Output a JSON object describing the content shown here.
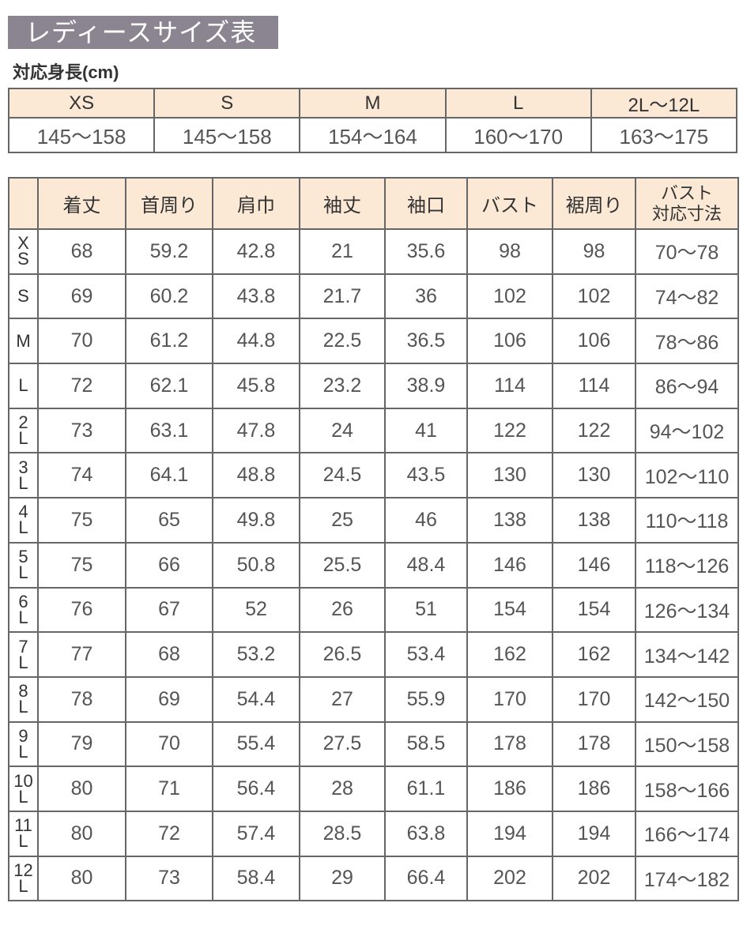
{
  "title": "レディースサイズ表",
  "height_table": {
    "caption": "対応身長(cm)",
    "sizes": [
      "XS",
      "S",
      "M",
      "L",
      "2L〜12L"
    ],
    "heights": [
      "145〜158",
      "145〜158",
      "154〜164",
      "160〜170",
      "163〜175"
    ]
  },
  "measure_table": {
    "headers": [
      "",
      "着丈",
      "首周り",
      "肩巾",
      "袖丈",
      "袖口",
      "バスト",
      "裾周り",
      "バスト\n対応寸法"
    ],
    "rows": [
      [
        "X\nS",
        "68",
        "59.2",
        "42.8",
        "21",
        "35.6",
        "98",
        "98",
        "70〜78"
      ],
      [
        "S",
        "69",
        "60.2",
        "43.8",
        "21.7",
        "36",
        "102",
        "102",
        "74〜82"
      ],
      [
        "M",
        "70",
        "61.2",
        "44.8",
        "22.5",
        "36.5",
        "106",
        "106",
        "78〜86"
      ],
      [
        "L",
        "72",
        "62.1",
        "45.8",
        "23.2",
        "38.9",
        "114",
        "114",
        "86〜94"
      ],
      [
        "2\nL",
        "73",
        "63.1",
        "47.8",
        "24",
        "41",
        "122",
        "122",
        "94〜102"
      ],
      [
        "3\nL",
        "74",
        "64.1",
        "48.8",
        "24.5",
        "43.5",
        "130",
        "130",
        "102〜110"
      ],
      [
        "4\nL",
        "75",
        "65",
        "49.8",
        "25",
        "46",
        "138",
        "138",
        "110〜118"
      ],
      [
        "5\nL",
        "75",
        "66",
        "50.8",
        "25.5",
        "48.4",
        "146",
        "146",
        "118〜126"
      ],
      [
        "6\nL",
        "76",
        "67",
        "52",
        "26",
        "51",
        "154",
        "154",
        "126〜134"
      ],
      [
        "7\nL",
        "77",
        "68",
        "53.2",
        "26.5",
        "53.4",
        "162",
        "162",
        "134〜142"
      ],
      [
        "8\nL",
        "78",
        "69",
        "54.4",
        "27",
        "55.9",
        "170",
        "170",
        "142〜150"
      ],
      [
        "9\nL",
        "79",
        "70",
        "55.4",
        "27.5",
        "58.5",
        "178",
        "178",
        "150〜158"
      ],
      [
        "10\nL",
        "80",
        "71",
        "56.4",
        "28",
        "61.1",
        "186",
        "186",
        "158〜166"
      ],
      [
        "11\nL",
        "80",
        "72",
        "57.4",
        "28.5",
        "63.8",
        "194",
        "194",
        "166〜174"
      ],
      [
        "12\nL",
        "80",
        "73",
        "58.4",
        "29",
        "66.4",
        "202",
        "202",
        "174〜182"
      ]
    ]
  },
  "colors": {
    "title_bg": "#8a8590",
    "header_bg": "#fbe8d5",
    "border": "#666666",
    "text": "#555555"
  }
}
